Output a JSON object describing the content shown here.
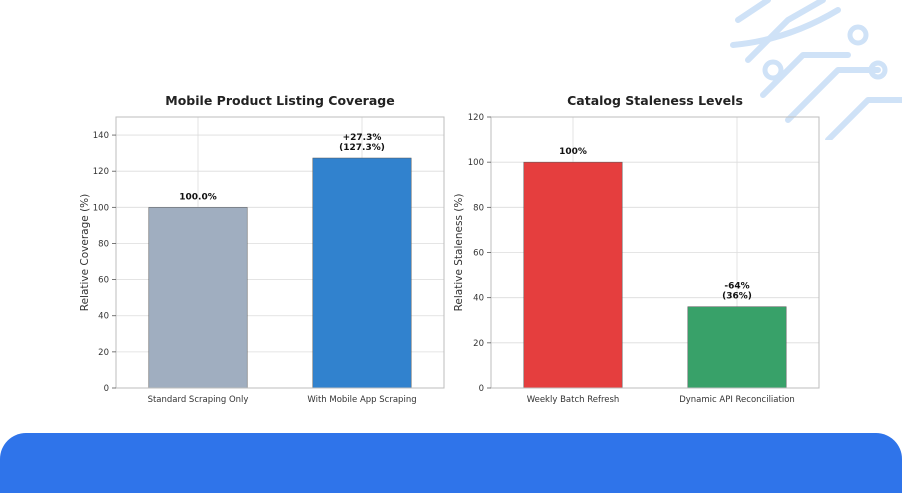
{
  "colors": {
    "background": "#ffffff",
    "bottom_band": "#2f74ea",
    "decoration": "#cfe2f7",
    "grid": "#dcdcdc",
    "axes": "#bdbdbd"
  },
  "chart_data": [
    {
      "type": "bar",
      "title": "Mobile Product Listing Coverage",
      "xlabel": "",
      "ylabel": "Relative Coverage (%)",
      "ylim": [
        0,
        150
      ],
      "yticks": [
        0,
        20,
        40,
        60,
        80,
        100,
        120,
        140
      ],
      "grid": true,
      "categories": [
        "Standard Scraping Only",
        "With Mobile App Scraping"
      ],
      "values": [
        100.0,
        127.3
      ],
      "colors": [
        "#a0aec0",
        "#3182ce"
      ],
      "data_labels": [
        [
          "100.0%"
        ],
        [
          "+27.3%",
          "(127.3%)"
        ]
      ]
    },
    {
      "type": "bar",
      "title": "Catalog Staleness Levels",
      "xlabel": "",
      "ylabel": "Relative Staleness (%)",
      "ylim": [
        0,
        120
      ],
      "yticks": [
        0,
        20,
        40,
        60,
        80,
        100,
        120
      ],
      "grid": true,
      "categories": [
        "Weekly Batch Refresh",
        "Dynamic API Reconciliation"
      ],
      "values": [
        100,
        36
      ],
      "colors": [
        "#e53e3e",
        "#38a169"
      ],
      "data_labels": [
        [
          "100%"
        ],
        [
          "-64%",
          "(36%)"
        ]
      ]
    }
  ]
}
